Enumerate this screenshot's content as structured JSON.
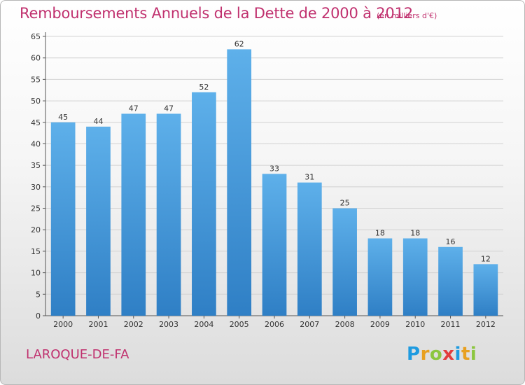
{
  "title": "Remboursements Annuels de la Dette de 2000 à 2012",
  "subtitle": "(en milliers d'€)",
  "commune": "LAROQUE-DE-FA",
  "logo": {
    "letters": [
      "P",
      "r",
      "o",
      "x",
      "i",
      "t",
      "i"
    ],
    "colors": [
      "#1f9be0",
      "#e8a020",
      "#8cc63f",
      "#e23c3c",
      "#1f9be0",
      "#e8a020",
      "#8cc63f"
    ]
  },
  "chart_data": {
    "type": "bar",
    "categories": [
      "2000",
      "2001",
      "2002",
      "2003",
      "2004",
      "2005",
      "2006",
      "2007",
      "2008",
      "2009",
      "2010",
      "2011",
      "2012"
    ],
    "values": [
      45,
      44,
      47,
      47,
      52,
      62,
      33,
      31,
      25,
      18,
      18,
      16,
      12
    ],
    "data_labels": [
      "45",
      "44",
      "47",
      "47",
      "52",
      "62",
      "33",
      "31",
      "25",
      "18",
      "18",
      "16",
      "12"
    ],
    "yticks": [
      0,
      5,
      10,
      15,
      20,
      25,
      30,
      35,
      40,
      45,
      50,
      55,
      60,
      65
    ],
    "ylim": [
      0,
      65
    ],
    "grid": true,
    "bar_color": "#3f97dc"
  }
}
